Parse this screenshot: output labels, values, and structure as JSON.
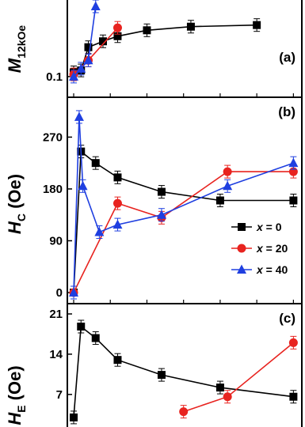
{
  "chart_data": [
    {
      "panel": "a",
      "type": "line",
      "panel_label": "(a)",
      "ylabel": "M",
      "ylabel_sub": "12kOe",
      "yscale": "log",
      "ylim": [
        0.09,
        2.0
      ],
      "yticks": [
        {
          "value": 0.1,
          "label": "0.1"
        }
      ],
      "x": [
        0,
        4,
        8,
        16,
        24,
        40,
        64,
        100
      ],
      "series": [
        {
          "name": "x = 0",
          "color": "#000000",
          "marker": "square",
          "points": [
            [
              0,
              0.12
            ],
            [
              4,
              0.13
            ],
            [
              8,
              0.35
            ],
            [
              16,
              0.45
            ],
            [
              24,
              0.56
            ],
            [
              40,
              0.72
            ],
            [
              64,
              0.84
            ],
            [
              100,
              0.9
            ]
          ]
        },
        {
          "name": "x = 20",
          "color": "#e8231f",
          "marker": "circle",
          "points": [
            [
              0,
              0.11
            ],
            [
              8,
              0.2
            ],
            [
              24,
              0.8
            ]
          ]
        },
        {
          "name": "x = 40",
          "color": "#1f3fe0",
          "marker": "triangle",
          "points": [
            [
              0,
              0.1
            ],
            [
              4,
              0.14
            ],
            [
              8,
              0.2
            ],
            [
              12,
              2.0
            ]
          ]
        }
      ]
    },
    {
      "panel": "b",
      "type": "line",
      "panel_label": "(b)",
      "ylabel": "H",
      "ylabel_sub": "C",
      "ylabel_unit": "(Oe)",
      "ylim": [
        0,
        320
      ],
      "yticks": [
        {
          "value": 0,
          "label": "0"
        },
        {
          "value": 90,
          "label": "90"
        },
        {
          "value": 180,
          "label": "180"
        },
        {
          "value": 270,
          "label": "270"
        }
      ],
      "series": [
        {
          "name": "x = 0",
          "color": "#000000",
          "marker": "square",
          "points": [
            [
              0,
              0
            ],
            [
              4,
              245
            ],
            [
              12,
              225
            ],
            [
              24,
              200
            ],
            [
              48,
              175
            ],
            [
              80,
              160
            ],
            [
              120,
              160
            ]
          ]
        },
        {
          "name": "x = 20",
          "color": "#e8231f",
          "marker": "circle",
          "points": [
            [
              0,
              0
            ],
            [
              24,
              155
            ],
            [
              48,
              130
            ],
            [
              84,
              210
            ],
            [
              120,
              210
            ]
          ]
        },
        {
          "name": "x = 40",
          "color": "#1f3fe0",
          "marker": "triangle",
          "points": [
            [
              0,
              0
            ],
            [
              3,
              305
            ],
            [
              5,
              185
            ],
            [
              14,
              105
            ],
            [
              24,
              118
            ],
            [
              48,
              135
            ],
            [
              84,
              185
            ],
            [
              120,
              225
            ]
          ]
        }
      ],
      "legend": {
        "position": "lower-right",
        "entries": [
          {
            "prefix": "x",
            "suffix": " = 0",
            "color": "#000000",
            "marker": "square"
          },
          {
            "prefix": "x",
            "suffix": " = 20",
            "color": "#e8231f",
            "marker": "circle"
          },
          {
            "prefix": "x",
            "suffix": " = 40",
            "color": "#1f3fe0",
            "marker": "triangle"
          }
        ]
      }
    },
    {
      "panel": "c",
      "type": "line",
      "panel_label": "(c)",
      "ylabel": "H",
      "ylabel_sub": "E",
      "ylabel_unit": "(Oe)",
      "ylim": [
        4.5,
        21
      ],
      "yticks": [
        {
          "value": 7,
          "label": "7"
        },
        {
          "value": 14,
          "label": "14"
        },
        {
          "value": 21,
          "label": "21"
        }
      ],
      "series": [
        {
          "name": "x = 0",
          "color": "#000000",
          "marker": "square",
          "points": [
            [
              0,
              3.0
            ],
            [
              4,
              18.8
            ],
            [
              12,
              16.8
            ],
            [
              24,
              13.0
            ],
            [
              48,
              10.4
            ],
            [
              80,
              8.2
            ],
            [
              120,
              6.6
            ]
          ]
        },
        {
          "name": "x = 20",
          "color": "#e8231f",
          "marker": "circle",
          "points": [
            [
              60,
              4.0
            ],
            [
              84,
              6.6
            ],
            [
              120,
              16.0
            ]
          ]
        }
      ]
    }
  ]
}
